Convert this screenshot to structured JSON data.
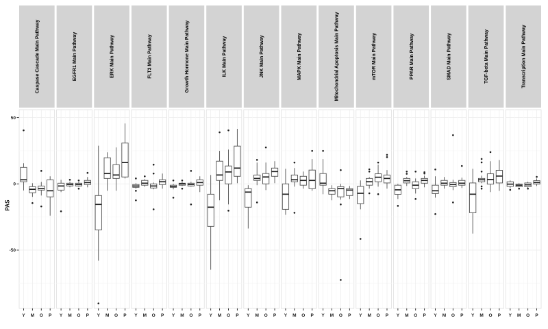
{
  "figure": {
    "title": "",
    "y_axis_title": "PAS"
  },
  "chart_data": {
    "type": "boxplot",
    "title": "",
    "xlabel": "",
    "ylabel": "PAS",
    "groups": [
      "Y",
      "M",
      "O",
      "P"
    ],
    "y_ticks": [
      50,
      0,
      -50
    ],
    "y_minor_ticks": [
      25,
      -25,
      -75
    ],
    "ylim": [
      -94,
      56
    ],
    "grid": true,
    "legend": "none",
    "colors": {
      "strip": "#d3d3d3",
      "panel_bg": "#ffffff",
      "panel_border": "#dcdcdc",
      "grid_major": "#ebebeb",
      "grid_minor": "#f7f7f7",
      "box": "#4d4d4d",
      "median": "#1f1f1f",
      "axis_text": "#1a1a1a"
    },
    "facets": [
      {
        "label": "Caspase Cascade Main Pathway",
        "boxes": [
          {
            "group": "Y",
            "whislo": -5.0,
            "q1": 1.6,
            "med": 3.1,
            "q3": 12.4,
            "whishi": 15.5,
            "outliers": [
              40.4
            ]
          },
          {
            "group": "M",
            "whislo": -9.8,
            "q1": -6.7,
            "med": -4.1,
            "q3": -2.1,
            "whishi": 0.5,
            "outliers": [
              -14.5
            ]
          },
          {
            "group": "O",
            "whislo": -8.8,
            "q1": -4.7,
            "med": -3.6,
            "q3": -1.6,
            "whishi": 1.5,
            "outliers": [
              9.8,
              -17.0
            ]
          },
          {
            "group": "P",
            "whislo": -24.0,
            "q1": -9.8,
            "med": -5.2,
            "q3": 3.1,
            "whishi": 5.7,
            "outliers": []
          }
        ]
      },
      {
        "label": "EGFR1 Main Pathway",
        "boxes": [
          {
            "group": "Y",
            "whislo": -6.2,
            "q1": -4.7,
            "med": -1.6,
            "q3": 0.5,
            "whishi": 3.1,
            "outliers": [
              -20.7
            ]
          },
          {
            "group": "M",
            "whislo": -2.6,
            "q1": -1.6,
            "med": -0.5,
            "q3": 0.5,
            "whishi": 1.6,
            "outliers": [
              3.1
            ]
          },
          {
            "group": "O",
            "whislo": -2.1,
            "q1": -1.6,
            "med": -0.5,
            "q3": 0.5,
            "whishi": 1.6,
            "outliers": [
              2.6,
              -3.6
            ]
          },
          {
            "group": "P",
            "whislo": -2.6,
            "q1": -0.5,
            "med": 1.0,
            "q3": 2.6,
            "whishi": 5.2,
            "outliers": [
              8.3
            ]
          }
        ]
      },
      {
        "label": "ERK Main Pathway",
        "boxes": [
          {
            "group": "Y",
            "whislo": -58.0,
            "q1": -34.7,
            "med": -15.5,
            "q3": -8.8,
            "whishi": 28.8,
            "outliers": [
              -90.2
            ]
          },
          {
            "group": "M",
            "whislo": -5.2,
            "q1": 4.1,
            "med": 7.8,
            "q3": 19.7,
            "whishi": 23.8,
            "outliers": []
          },
          {
            "group": "O",
            "whislo": -5.2,
            "q1": 4.1,
            "med": 6.7,
            "q3": 14.5,
            "whishi": 27.5,
            "outliers": []
          },
          {
            "group": "P",
            "whislo": 4.1,
            "q1": 5.2,
            "med": 16.1,
            "q3": 30.8,
            "whishi": 45.6,
            "outliers": []
          }
        ]
      },
      {
        "label": "FLT3 Main Pathway",
        "boxes": [
          {
            "group": "Y",
            "whislo": -3.6,
            "q1": -2.6,
            "med": -1.6,
            "q3": -0.5,
            "whishi": 0.5,
            "outliers": [
              4.1,
              -5.2,
              -12.4
            ]
          },
          {
            "group": "M",
            "whislo": -2.1,
            "q1": -1.0,
            "med": 0.5,
            "q3": 2.6,
            "whishi": 3.6,
            "outliers": [
              5.7
            ]
          },
          {
            "group": "O",
            "whislo": -4.1,
            "q1": -3.1,
            "med": -1.6,
            "q3": 0.0,
            "whishi": 1.0,
            "outliers": [
              14.5,
              7.8,
              -19.2
            ]
          },
          {
            "group": "P",
            "whislo": -3.6,
            "q1": -0.5,
            "med": 1.6,
            "q3": 3.1,
            "whishi": 7.8,
            "outliers": []
          }
        ]
      },
      {
        "label": "Growth Hormone Main Pathway",
        "boxes": [
          {
            "group": "Y",
            "whislo": -4.1,
            "q1": -2.6,
            "med": -2.1,
            "q3": -1.0,
            "whishi": 0.0,
            "outliers": [
              2.6,
              -10.4
            ]
          },
          {
            "group": "M",
            "whislo": -1.6,
            "q1": -1.0,
            "med": 0.0,
            "q3": 0.5,
            "whishi": 1.6,
            "outliers": [
              2.6,
              -3.6
            ]
          },
          {
            "group": "O",
            "whislo": -2.1,
            "q1": -1.6,
            "med": -0.5,
            "q3": 0.5,
            "whishi": 1.6,
            "outliers": [
              9.8,
              -15.5
            ]
          },
          {
            "group": "P",
            "whislo": -6.2,
            "q1": -1.0,
            "med": 1.0,
            "q3": 3.1,
            "whishi": 5.7,
            "outliers": []
          }
        ]
      },
      {
        "label": "ILK Main Pathway",
        "boxes": [
          {
            "group": "Y",
            "whislo": -64.8,
            "q1": -32.1,
            "med": -17.6,
            "q3": -7.8,
            "whishi": 6.7,
            "outliers": []
          },
          {
            "group": "M",
            "whislo": -12.4,
            "q1": 2.6,
            "med": 6.7,
            "q3": 17.1,
            "whishi": 24.9,
            "outliers": [
              38.9
            ]
          },
          {
            "group": "O",
            "whislo": -15.5,
            "q1": 0.0,
            "med": 9.0,
            "q3": 13.5,
            "whishi": 25.9,
            "outliers": [
              40.4,
              -20.2
            ]
          },
          {
            "group": "P",
            "whislo": 0.5,
            "q1": 5.7,
            "med": 11.9,
            "q3": 28.5,
            "whishi": 41.5,
            "outliers": []
          }
        ]
      },
      {
        "label": "JNK Main Pathway",
        "boxes": [
          {
            "group": "Y",
            "whislo": -33.7,
            "q1": -17.6,
            "med": -6.2,
            "q3": -3.6,
            "whishi": -1.0,
            "outliers": []
          },
          {
            "group": "M",
            "whislo": -1.0,
            "q1": 2.6,
            "med": 4.1,
            "q3": 6.7,
            "whishi": 16.1,
            "outliers": [
              18.1,
              -14.0
            ]
          },
          {
            "group": "O",
            "whislo": -4.7,
            "q1": 0.0,
            "med": 5.2,
            "q3": 7.8,
            "whishi": 16.1,
            "outliers": [
              27.5
            ]
          },
          {
            "group": "P",
            "whislo": 0.5,
            "q1": 5.7,
            "med": 9.3,
            "q3": 11.9,
            "whishi": 17.1,
            "outliers": []
          }
        ]
      },
      {
        "label": "MAPK Main Pathway",
        "boxes": [
          {
            "group": "Y",
            "whislo": -23.3,
            "q1": -19.2,
            "med": -7.8,
            "q3": 0.0,
            "whishi": 11.4,
            "outliers": []
          },
          {
            "group": "M",
            "whislo": -2.1,
            "q1": 1.6,
            "med": 3.1,
            "q3": 6.7,
            "whishi": 11.9,
            "outliers": [
              16.1,
              -21.8
            ]
          },
          {
            "group": "O",
            "whislo": -3.6,
            "q1": -1.0,
            "med": 2.6,
            "q3": 5.7,
            "whishi": 9.3,
            "outliers": []
          },
          {
            "group": "P",
            "whislo": -5.2,
            "q1": -3.6,
            "med": 2.6,
            "q3": 10.4,
            "whishi": 18.7,
            "outliers": [
              24.9
            ]
          }
        ]
      },
      {
        "label": "Mitochondrial Apoptosis Main Pathway",
        "boxes": [
          {
            "group": "Y",
            "whislo": -7.8,
            "q1": -1.0,
            "med": 0.5,
            "q3": 7.8,
            "whishi": 18.7,
            "outliers": [
              24.9
            ]
          },
          {
            "group": "M",
            "whislo": -12.4,
            "q1": -7.8,
            "med": -5.2,
            "q3": -3.6,
            "whishi": -1.0,
            "outliers": []
          },
          {
            "group": "O",
            "whislo": -11.9,
            "q1": -9.8,
            "med": -3.6,
            "q3": -2.1,
            "whishi": 0.0,
            "outliers": [
              10.4,
              -15.5,
              -72.5
            ]
          },
          {
            "group": "P",
            "whislo": -11.4,
            "q1": -8.8,
            "med": -4.7,
            "q3": -3.6,
            "whishi": -1.6,
            "outliers": []
          }
        ]
      },
      {
        "label": "mTOR Main Pathway",
        "boxes": [
          {
            "group": "Y",
            "whislo": -19.2,
            "q1": -14.9,
            "med": -7.1,
            "q3": -1.9,
            "whishi": 2.6,
            "outliers": [
              -41.5
            ]
          },
          {
            "group": "M",
            "whislo": -3.6,
            "q1": -1.0,
            "med": 1.6,
            "q3": 4.1,
            "whishi": 5.2,
            "outliers": [
              11.0,
              9.3,
              -7.1
            ]
          },
          {
            "group": "O",
            "whislo": -2.1,
            "q1": 1.6,
            "med": 5.0,
            "q3": 7.6,
            "whishi": 14.5,
            "outliers": [
              16.1,
              -7.8
            ]
          },
          {
            "group": "P",
            "whislo": -3.6,
            "q1": 0.7,
            "med": 4.1,
            "q3": 6.7,
            "whishi": 10.4,
            "outliers": [
              21.9,
              20.2
            ]
          }
        ]
      },
      {
        "label": "PPAR Main Pathway",
        "boxes": [
          {
            "group": "Y",
            "whislo": -11.4,
            "q1": -7.9,
            "med": -4.5,
            "q3": -1.0,
            "whishi": 0.0,
            "outliers": [
              -16.6
            ]
          },
          {
            "group": "M",
            "whislo": -1.6,
            "q1": 0.7,
            "med": 2.4,
            "q3": 4.1,
            "whishi": 5.2,
            "outliers": [
              9.3,
              7.6
            ]
          },
          {
            "group": "O",
            "whislo": -7.3,
            "q1": -3.6,
            "med": -1.0,
            "q3": 1.6,
            "whishi": 4.1,
            "outliers": [
              9.3,
              -11.4
            ]
          },
          {
            "group": "P",
            "whislo": -2.6,
            "q1": 0.5,
            "med": 2.6,
            "q3": 4.1,
            "whishi": 6.2,
            "outliers": [
              8.8,
              7.8
            ]
          }
        ]
      },
      {
        "label": "SMAD Main Pathway",
        "boxes": [
          {
            "group": "Y",
            "whislo": -10.4,
            "q1": -7.3,
            "med": -5.2,
            "q3": -1.0,
            "whishi": 5.7,
            "outliers": [
              10.9,
              -22.8
            ]
          },
          {
            "group": "M",
            "whislo": -3.6,
            "q1": -1.0,
            "med": 0.5,
            "q3": 2.6,
            "whishi": 5.2,
            "outliers": []
          },
          {
            "group": "O",
            "whislo": -4.7,
            "q1": -2.1,
            "med": -0.5,
            "q3": 1.0,
            "whishi": 3.1,
            "outliers": [
              36.8,
              -14.0
            ]
          },
          {
            "group": "P",
            "whislo": -3.1,
            "q1": -1.0,
            "med": 0.5,
            "q3": 2.6,
            "whishi": 4.7,
            "outliers": [
              13.5
            ]
          }
        ]
      },
      {
        "label": "TGF-beta Main Pathway",
        "boxes": [
          {
            "group": "Y",
            "whislo": -37.5,
            "q1": -21.8,
            "med": -7.8,
            "q3": 0.7,
            "whishi": 11.4,
            "outliers": []
          },
          {
            "group": "M",
            "whislo": 0.5,
            "q1": 1.6,
            "med": 3.1,
            "q3": 4.1,
            "whishi": 6.2,
            "outliers": [
              18.8,
              16.2,
              9.3,
              -1.9,
              -3.6
            ]
          },
          {
            "group": "O",
            "whislo": -6.2,
            "q1": -0.2,
            "med": 3.3,
            "q3": 7.6,
            "whishi": 17.1,
            "outliers": [
              24.0
            ]
          },
          {
            "group": "P",
            "whislo": -5.3,
            "q1": 0.7,
            "med": 5.9,
            "q3": 10.2,
            "whishi": 18.0,
            "outliers": []
          }
        ]
      },
      {
        "label": "Transcription Main Pathway",
        "boxes": [
          {
            "group": "Y",
            "whislo": -3.1,
            "q1": -1.9,
            "med": -0.2,
            "q3": 1.6,
            "whishi": 2.6,
            "outliers": [
              -4.5
            ]
          },
          {
            "group": "M",
            "whislo": -2.6,
            "q1": -2.1,
            "med": -1.0,
            "q3": -0.2,
            "whishi": 0.5,
            "outliers": [
              -3.6
            ]
          },
          {
            "group": "O",
            "whislo": -3.1,
            "q1": -2.2,
            "med": -0.7,
            "q3": 0.7,
            "whishi": 1.6,
            "outliers": [
              -3.6
            ]
          },
          {
            "group": "P",
            "whislo": -1.6,
            "q1": -0.2,
            "med": 1.0,
            "q3": 2.4,
            "whishi": 4.1,
            "outliers": [
              5.3
            ]
          }
        ]
      }
    ]
  }
}
